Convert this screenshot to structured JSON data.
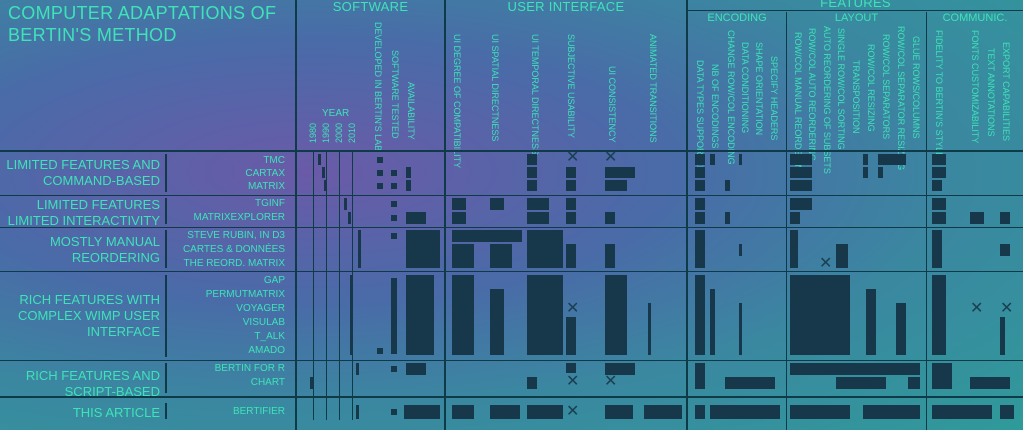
{
  "title_lines": [
    "COMPUTER ADAPTATIONS OF",
    "BERTIN'S METHOD"
  ],
  "sections": {
    "software": "SOFTWARE",
    "ui": "USER INTERFACE",
    "features": "FEATURES",
    "encoding": "ENCODING",
    "layout": "LAYOUT",
    "communic": "COMMUNIC."
  },
  "year_label": "YEAR",
  "years": [
    "1980",
    "1990",
    "2000",
    "2010"
  ],
  "software_cols": [
    "DEVELOPED IN BERTIN'S LAB",
    "SOFTWARE TESTED",
    "AVAILABILITY"
  ],
  "ui_cols": [
    "UI DEGREE OF COMPATIBILITY",
    "UI SPATIAL DIRECTNESS",
    "UI TEMPORAL DIRECTNESS",
    "SUBJECTIVE USABILITY",
    "UI CONSISTENCY",
    "ANIMATED TRANSITIONS"
  ],
  "encoding_cols": [
    "DATA TYPES SUPPORTED",
    "NB OF ENCODINGS",
    "CHANGE ROW/COL ENCODING",
    "DATA CONDITIONING",
    "SHAPE ORIENTATION",
    "SPECIFY HEADERS"
  ],
  "layout_cols": [
    "ROW/COL MANUAL REORDERING",
    "ROW/COL AUTO REORDERING",
    "AUTO REORDERING OF SUBSETS",
    "SINGLE ROW/COL SORTING",
    "TRANSPOSITION",
    "ROW/COL RESIZING",
    "ROW/COL SEPARATORS",
    "ROW/COL SEPARATOR RESIZING",
    "GLUE ROWS/COLUMNS"
  ],
  "comm_cols": [
    "FIDELITY TO BERTIN'S STYLE",
    "FONTS CUSTOMIZABILITY",
    "TEXT ANNOTATIONS",
    "EXPORT CAPABILITIES"
  ],
  "groups": [
    {
      "label": "LIMITED FEATURES AND COMMAND-BASED",
      "systems": [
        "TMC",
        "CARTAX",
        "MATRIX"
      ]
    },
    {
      "label": "LIMITED FEATURES LIMITED INTERACTIVITY",
      "systems": [
        "TGINF",
        "MATRIXEXPLORER"
      ]
    },
    {
      "label": "MOSTLY MANUAL REORDERING",
      "systems": [
        "STEVE RUBIN, IN D3",
        "CARTES & DONNÉES",
        "THE REORD. MATRIX"
      ]
    },
    {
      "label": "RICH FEATURES WITH COMPLEX WIMP USER INTERFACE",
      "systems": [
        "GAP",
        "PERMUTMATRIX",
        "VOYAGER",
        "VISULAB",
        "T_ALK",
        "AMADO"
      ]
    },
    {
      "label": "RICH FEATURES AND SCRIPT-BASED",
      "systems": [
        "BERTIN FOR R",
        "CHART"
      ]
    },
    {
      "label": "THIS ARTICLE",
      "systems": [
        "BERTIFIER"
      ]
    }
  ]
}
